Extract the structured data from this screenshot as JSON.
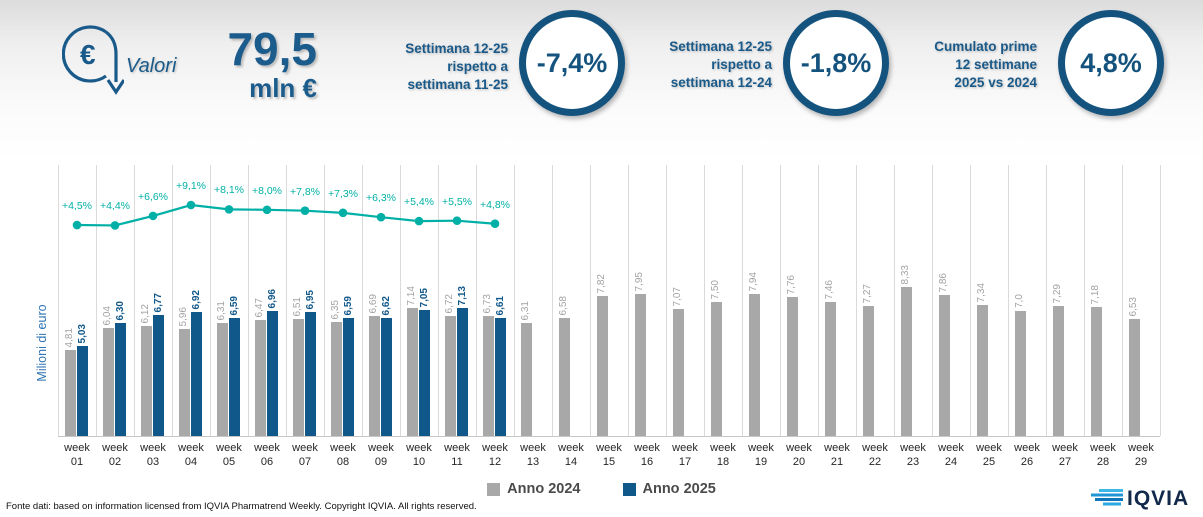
{
  "header": {
    "icon_label": "Valori",
    "total_value": "79,5",
    "total_unit": "mln €",
    "accent_color": "#1a5a8a",
    "kpis": [
      {
        "label_lines": [
          "Settimana 12-25",
          "rispetto a",
          "settimana 11-25"
        ],
        "value": "-7,4%"
      },
      {
        "label_lines": [
          "Settimana 12-25",
          "rispetto a",
          "settimana 12-24"
        ],
        "value": "-1,8%"
      },
      {
        "label_lines": [
          "Cumulato prime",
          "12 settimane",
          "2025 vs 2024"
        ],
        "value": "4,8%"
      }
    ]
  },
  "chart_data": {
    "type": "bar",
    "title": "",
    "xlabel": "",
    "ylabel": "Milioni di euro",
    "ylim": [
      0,
      15
    ],
    "grid": "vertical",
    "category_prefix": "week",
    "categories": [
      "01",
      "02",
      "03",
      "04",
      "05",
      "06",
      "07",
      "08",
      "09",
      "10",
      "11",
      "12",
      "13",
      "14",
      "15",
      "16",
      "17",
      "18",
      "19",
      "20",
      "21",
      "22",
      "23",
      "24",
      "25",
      "26",
      "27",
      "28",
      "29"
    ],
    "series": [
      {
        "name": "Anno 2024",
        "color": "#a8a8a8",
        "values": [
          4.81,
          6.04,
          6.12,
          5.96,
          6.31,
          6.47,
          6.51,
          6.35,
          6.69,
          7.14,
          6.72,
          6.73,
          6.31,
          6.58,
          7.82,
          7.95,
          7.07,
          7.5,
          7.94,
          7.76,
          7.46,
          7.27,
          8.33,
          7.86,
          7.34,
          7.0,
          7.29,
          7.18,
          6.53
        ],
        "labels": [
          "4,81",
          "6,04",
          "6,12",
          "5,96",
          "6,31",
          "6,47",
          "6,51",
          "6,35",
          "6,69",
          "7,14",
          "6,72",
          "6,73",
          "6,31",
          "6,58",
          "7,82",
          "7,95",
          "7,07",
          "7,50",
          "7,94",
          "7,76",
          "7,46",
          "7,27",
          "8,33",
          "7,86",
          "7,34",
          "7,0",
          "7,29",
          "7,18",
          "6,53"
        ]
      },
      {
        "name": "Anno 2025",
        "color": "#11588a",
        "values": [
          5.03,
          6.3,
          6.77,
          6.92,
          6.59,
          6.96,
          6.95,
          6.59,
          6.62,
          7.05,
          7.13,
          6.61
        ],
        "labels": [
          "5,03",
          "6,30",
          "6,77",
          "6,92",
          "6,59",
          "6,96",
          "6,95",
          "6,59",
          "6,62",
          "7,05",
          "7,13",
          "6,61"
        ]
      }
    ],
    "line_series": {
      "color": "#00b0a6",
      "values_pct": [
        4.5,
        4.4,
        6.6,
        9.1,
        8.1,
        8.0,
        7.8,
        7.3,
        6.3,
        5.4,
        5.5,
        4.8
      ],
      "labels": [
        "+4,5%",
        "+4,4%",
        "+6,6%",
        "+9,1%",
        "+8,1%",
        "+8,0%",
        "+7,8%",
        "+7,3%",
        "+6,3%",
        "+5,4%",
        "+5,5%",
        "+4,8%"
      ]
    }
  },
  "legend": {
    "items": [
      {
        "label": "Anno 2024",
        "color": "#a8a8a8"
      },
      {
        "label": "Anno 2025",
        "color": "#11588a"
      }
    ]
  },
  "footer": {
    "source": "Fonte dati: based on information licensed from IQVIA Pharmatrend Weekly. Copyright IQVIA. All rights reserved.",
    "logo_text": "IQVIA"
  }
}
